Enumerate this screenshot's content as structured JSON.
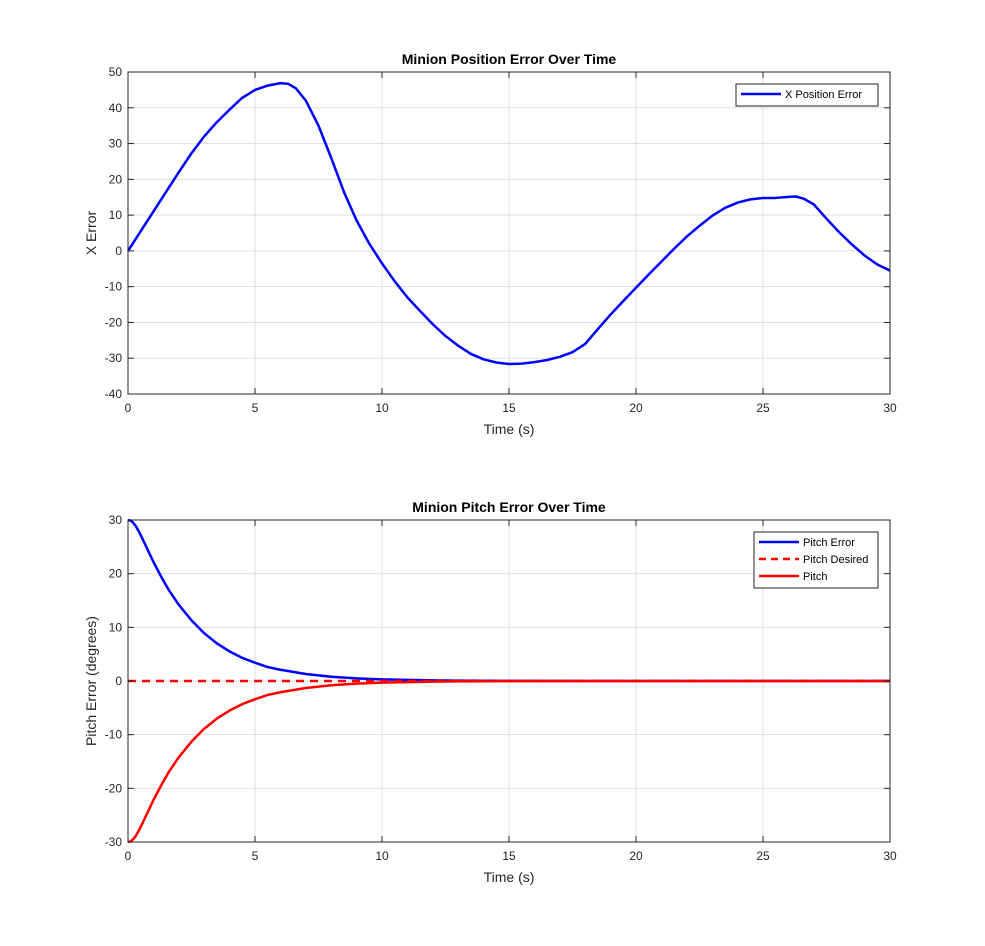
{
  "chart_data": [
    {
      "type": "line",
      "title": "Minion Position Error Over Time",
      "xlabel": "Time (s)",
      "ylabel": "X Error",
      "xlim": [
        0,
        30
      ],
      "ylim": [
        -40,
        50
      ],
      "xticks": [
        0,
        5,
        10,
        15,
        20,
        25,
        30
      ],
      "yticks": [
        -40,
        -30,
        -20,
        -10,
        0,
        10,
        20,
        30,
        40,
        50
      ],
      "grid": true,
      "legend": "top-right",
      "series": [
        {
          "name": "X Position Error",
          "color": "#0000ff",
          "style": "solid",
          "x": [
            0,
            0.5,
            1,
            1.5,
            2,
            2.5,
            3,
            3.5,
            4,
            4.5,
            5,
            5.5,
            6,
            6.3,
            6.6,
            7,
            7.5,
            8,
            8.5,
            9,
            9.5,
            10,
            10.5,
            11,
            11.5,
            12,
            12.5,
            13,
            13.5,
            14,
            14.5,
            15,
            15.5,
            16,
            16.5,
            17,
            17.5,
            18,
            18.3,
            18.7,
            19,
            19.5,
            20,
            20.5,
            21,
            21.5,
            22,
            22.5,
            23,
            23.5,
            24,
            24.5,
            25,
            25.5,
            26,
            26.3,
            26.6,
            27,
            27.5,
            28,
            28.5,
            29,
            29.5,
            30
          ],
          "y": [
            0,
            5.5,
            11,
            16.5,
            22,
            27.3,
            32,
            36,
            39.5,
            42.8,
            45,
            46.2,
            46.9,
            46.7,
            45.5,
            42,
            35,
            26,
            16.5,
            8.5,
            2,
            -3.5,
            -8.5,
            -13,
            -16.8,
            -20.5,
            -23.8,
            -26.5,
            -28.8,
            -30.3,
            -31.2,
            -31.6,
            -31.5,
            -31.1,
            -30.5,
            -29.6,
            -28.3,
            -26,
            -23.5,
            -20.2,
            -17.8,
            -14,
            -10.3,
            -6.6,
            -3,
            0.6,
            4,
            7,
            9.8,
            12,
            13.5,
            14.4,
            14.8,
            14.8,
            15.1,
            15.2,
            14.6,
            13,
            9,
            5.2,
            1.8,
            -1.3,
            -3.8,
            -5.5
          ]
        }
      ]
    },
    {
      "type": "line",
      "title": "Minion Pitch Error Over Time",
      "xlabel": "Time (s)",
      "ylabel": "Pitch Error (degrees)",
      "xlim": [
        0,
        30
      ],
      "ylim": [
        -30,
        30
      ],
      "xticks": [
        0,
        5,
        10,
        15,
        20,
        25,
        30
      ],
      "yticks": [
        -30,
        -20,
        -10,
        0,
        10,
        20,
        30
      ],
      "grid": true,
      "legend": "top-right",
      "series": [
        {
          "name": "Pitch Error",
          "color": "#0000ff",
          "style": "solid",
          "x": [
            0,
            0.1,
            0.2,
            0.3,
            0.4,
            0.5,
            0.7,
            1,
            1.3,
            1.6,
            2,
            2.5,
            3,
            3.5,
            4,
            4.5,
            5,
            5.5,
            6,
            7,
            8,
            9,
            10,
            11,
            12,
            13,
            14,
            15,
            16,
            18,
            20,
            22,
            24,
            26,
            28,
            30
          ],
          "y": [
            30,
            29.9,
            29.5,
            28.9,
            28.1,
            27.2,
            25.2,
            22.2,
            19.5,
            17,
            14.2,
            11.3,
            8.9,
            7,
            5.5,
            4.3,
            3.4,
            2.6,
            2.1,
            1.3,
            0.8,
            0.5,
            0.3,
            0.2,
            0.12,
            0.08,
            0.05,
            0.03,
            0.02,
            0.01,
            0,
            0,
            0,
            0,
            0,
            0
          ]
        },
        {
          "name": "Pitch Desired",
          "color": "#ff0000",
          "style": "dashed",
          "x": [
            0,
            30
          ],
          "y": [
            0,
            0
          ]
        },
        {
          "name": "Pitch",
          "color": "#ff0000",
          "style": "solid",
          "x": [
            0,
            0.1,
            0.2,
            0.3,
            0.4,
            0.5,
            0.7,
            1,
            1.3,
            1.6,
            2,
            2.5,
            3,
            3.5,
            4,
            4.5,
            5,
            5.5,
            6,
            7,
            8,
            9,
            10,
            11,
            12,
            13,
            14,
            15,
            16,
            18,
            20,
            22,
            24,
            26,
            28,
            30
          ],
          "y": [
            -30,
            -29.9,
            -29.5,
            -28.9,
            -28.1,
            -27.2,
            -25.2,
            -22.2,
            -19.5,
            -17,
            -14.2,
            -11.3,
            -8.9,
            -7,
            -5.5,
            -4.3,
            -3.4,
            -2.6,
            -2.1,
            -1.3,
            -0.8,
            -0.5,
            -0.3,
            -0.2,
            -0.12,
            -0.08,
            -0.05,
            -0.03,
            -0.02,
            -0.01,
            0,
            0,
            0,
            0,
            0,
            0
          ]
        }
      ]
    }
  ]
}
